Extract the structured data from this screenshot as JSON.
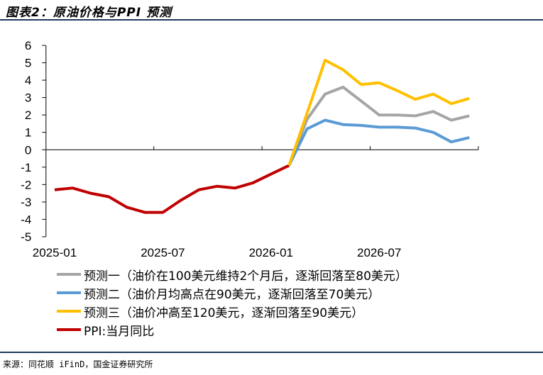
{
  "title": "图表2：原油价格与PPI 预测",
  "source": "来源：同花顺 iFinD，国金证券研究所",
  "chart_data": {
    "type": "line",
    "categories": [
      "2025-01",
      "2025-02",
      "2025-03",
      "2025-04",
      "2025-05",
      "2025-06",
      "2025-07",
      "2025-08",
      "2025-09",
      "2025-10",
      "2025-11",
      "2025-12",
      "2026-01",
      "2026-02",
      "2026-03",
      "2026-04",
      "2026-05",
      "2026-06",
      "2026-07",
      "2026-08",
      "2026-09",
      "2026-10",
      "2026-11",
      "2026-12"
    ],
    "x_tick_labels": [
      "2025-01",
      "2025-07",
      "2026-01",
      "2026-07"
    ],
    "y_ticks": [
      6,
      5,
      4,
      3,
      2,
      1,
      0,
      -1,
      -2,
      -3,
      -4,
      -5
    ],
    "ylim": [
      -5,
      6
    ],
    "grid": false,
    "legend_position": "bottom",
    "series": [
      {
        "name": "预测一（油价在100美元维持2个月后，逐渐回落至80美元）",
        "color": "#a5a5a5",
        "values": [
          null,
          null,
          null,
          null,
          null,
          null,
          null,
          null,
          null,
          null,
          null,
          null,
          null,
          -0.9,
          1.75,
          3.2,
          3.6,
          2.8,
          2.0,
          2.0,
          1.95,
          2.2,
          1.7,
          1.95
        ]
      },
      {
        "name": "预测二（油价月均高点在90美元，逐渐回落至70美元）",
        "color": "#5b9bd5",
        "values": [
          null,
          null,
          null,
          null,
          null,
          null,
          null,
          null,
          null,
          null,
          null,
          null,
          null,
          -0.9,
          1.2,
          1.7,
          1.45,
          1.4,
          1.3,
          1.3,
          1.25,
          1.0,
          0.45,
          0.7
        ]
      },
      {
        "name": "预测三（油价冲高至120美元，逐渐回落至90美元）",
        "color": "#ffc000",
        "values": [
          null,
          null,
          null,
          null,
          null,
          null,
          null,
          null,
          null,
          null,
          null,
          null,
          null,
          -0.9,
          2.1,
          5.15,
          4.6,
          3.75,
          3.85,
          3.4,
          2.9,
          3.2,
          2.65,
          2.95
        ]
      },
      {
        "name": "PPI:当月同比",
        "color": "#c00000",
        "values": [
          -2.3,
          -2.2,
          -2.5,
          -2.7,
          -3.3,
          -3.6,
          -3.6,
          -2.9,
          -2.3,
          -2.1,
          -2.2,
          -1.9,
          -1.4,
          -0.9,
          null,
          null,
          null,
          null,
          null,
          null,
          null,
          null,
          null,
          null
        ]
      }
    ]
  }
}
